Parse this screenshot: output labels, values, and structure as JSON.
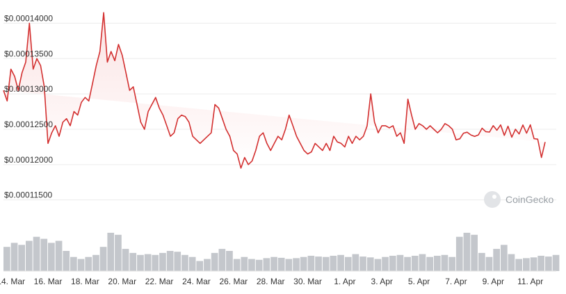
{
  "chart_data": {
    "type": "area",
    "title": "",
    "xlabel": "",
    "ylabel": "",
    "ylim": [
      0.000113,
      0.0001425
    ],
    "y_ticks": [
      0.000115,
      0.00012,
      0.000125,
      0.00013,
      0.000135,
      0.00014
    ],
    "y_tick_labels": [
      "$0.00011500",
      "$0.00012000",
      "$0.00012500",
      "$0.00013000",
      "$0.00013500",
      "$0.00014000"
    ],
    "x_tick_labels": [
      "14. Mar",
      "16. Mar",
      "18. Mar",
      "20. Mar",
      "22. Mar",
      "24. Mar",
      "26. Mar",
      "28. Mar",
      "30. Mar",
      "1. Apr",
      "3. Apr",
      "5. Apr",
      "7. Apr",
      "9. Apr",
      "11. Apr"
    ],
    "x_ticks_day": [
      1,
      3,
      5,
      7,
      9,
      11,
      13,
      15,
      17,
      19,
      21,
      23,
      25,
      27,
      29
    ],
    "x_range_day": [
      0.6,
      30.4
    ],
    "grid": true,
    "legend": "none",
    "series": [
      {
        "day": [
          0.6,
          0.8,
          1.0,
          1.2,
          1.4,
          1.6,
          1.8,
          2.0,
          2.2,
          2.4,
          2.6,
          2.8,
          3.0,
          3.2,
          3.4,
          3.6,
          3.8,
          4.0,
          4.2,
          4.4,
          4.6,
          4.8,
          5.0,
          5.2,
          5.4,
          5.6,
          5.8,
          6.0,
          6.2,
          6.4,
          6.6,
          6.8,
          7.0,
          7.2,
          7.4,
          7.6,
          7.8,
          8.0,
          8.2,
          8.4,
          8.6,
          8.8,
          9.0,
          9.2,
          9.4,
          9.6,
          9.8,
          10.0,
          10.2,
          10.4,
          10.6,
          10.8,
          11.0,
          11.2,
          11.4,
          11.6,
          11.8,
          12.0,
          12.2,
          12.4,
          12.6,
          12.8,
          13.0,
          13.2,
          13.4,
          13.6,
          13.8,
          14.0,
          14.2,
          14.4,
          14.6,
          14.8,
          15.0,
          15.2,
          15.4,
          15.6,
          15.8,
          16.0,
          16.2,
          16.4,
          16.6,
          16.8,
          17.0,
          17.2,
          17.4,
          17.6,
          17.8,
          18.0,
          18.2,
          18.4,
          18.6,
          18.8,
          19.0,
          19.2,
          19.4,
          19.6,
          19.8,
          20.0,
          20.2,
          20.4,
          20.6,
          20.8,
          21.0,
          21.2,
          21.4,
          21.6,
          21.8,
          22.0,
          22.2,
          22.4,
          22.6,
          22.8,
          23.0,
          23.2,
          23.4,
          23.6,
          23.8,
          24.0,
          24.2,
          24.4,
          24.6,
          24.8,
          25.0,
          25.2,
          25.4,
          25.6,
          25.8,
          26.0,
          26.2,
          26.4,
          26.6,
          26.8,
          27.0,
          27.2,
          27.4,
          27.6,
          27.8,
          28.0,
          28.2,
          28.4,
          28.6,
          28.8,
          29.0,
          29.2,
          29.4,
          29.6,
          29.8,
          30.0,
          30.2,
          30.4
        ],
        "price": [
          0.0001305,
          0.000129,
          0.0001335,
          0.0001325,
          0.0001305,
          0.000133,
          0.0001345,
          0.00014,
          0.0001335,
          0.000135,
          0.000134,
          0.000131,
          0.000123,
          0.0001245,
          0.0001255,
          0.000124,
          0.000126,
          0.0001265,
          0.0001255,
          0.0001275,
          0.000127,
          0.0001288,
          0.0001295,
          0.000129,
          0.0001315,
          0.000134,
          0.000136,
          0.0001415,
          0.0001345,
          0.000136,
          0.0001347,
          0.000137,
          0.0001355,
          0.000133,
          0.0001305,
          0.000131,
          0.0001285,
          0.000126,
          0.000125,
          0.0001275,
          0.0001285,
          0.0001295,
          0.000128,
          0.000127,
          0.0001255,
          0.000124,
          0.0001245,
          0.0001265,
          0.000127,
          0.0001268,
          0.000126,
          0.000124,
          0.0001235,
          0.000123,
          0.0001235,
          0.000124,
          0.0001245,
          0.0001285,
          0.000128,
          0.0001265,
          0.000125,
          0.000124,
          0.000122,
          0.0001215,
          0.0001195,
          0.000121,
          0.00012,
          0.0001205,
          0.000122,
          0.000124,
          0.0001245,
          0.000123,
          0.000122,
          0.000123,
          0.000124,
          0.0001235,
          0.000125,
          0.000127,
          0.0001255,
          0.000124,
          0.000123,
          0.000122,
          0.0001215,
          0.0001218,
          0.000123,
          0.0001225,
          0.000122,
          0.000123,
          0.000122,
          0.000124,
          0.0001232,
          0.000123,
          0.0001225,
          0.000124,
          0.000123,
          0.000124,
          0.0001235,
          0.000124,
          0.00012545,
          0.00013,
          0.000126,
          0.0001245,
          0.0001255,
          0.0001255,
          0.0001252,
          0.0001255,
          0.000124,
          0.0001245,
          0.000123,
          0.00012925,
          0.000127,
          0.000125,
          0.0001258,
          0.0001255,
          0.000125,
          0.0001255,
          0.000125,
          0.0001245,
          0.000125,
          0.0001258,
          0.0001255,
          0.000125,
          0.0001235,
          0.00012365,
          0.00012445,
          0.00012458,
          0.00012418,
          0.00012398,
          0.0001242,
          0.00012514,
          0.00012466,
          0.0001246,
          0.00012551,
          0.00012486,
          0.00012562,
          0.00012413,
          0.00012543,
          0.00012388,
          0.000125,
          0.00012434,
          0.00012561,
          0.00012445,
          0.00012563,
          0.00012367,
          0.0001236,
          0.000121,
          0.0001232
        ]
      }
    ],
    "volume": {
      "day": [
        0.6,
        1.0,
        1.4,
        1.8,
        2.2,
        2.6,
        3.0,
        3.4,
        3.8,
        4.2,
        4.6,
        5.0,
        5.4,
        5.8,
        6.2,
        6.6,
        7.0,
        7.4,
        7.8,
        8.2,
        8.6,
        9.0,
        9.4,
        9.8,
        10.2,
        10.6,
        11.0,
        11.4,
        11.8,
        12.2,
        12.6,
        13.0,
        13.4,
        13.8,
        14.2,
        14.6,
        15.0,
        15.4,
        15.8,
        16.2,
        16.6,
        17.0,
        17.4,
        17.8,
        18.2,
        18.6,
        19.0,
        19.4,
        19.8,
        20.2,
        20.6,
        21.0,
        21.4,
        21.8,
        22.2,
        22.6,
        23.0,
        23.4,
        23.8,
        24.2,
        24.6,
        25.0,
        25.4,
        25.8,
        26.2,
        26.6,
        27.0,
        27.4,
        27.8,
        28.2,
        28.6,
        29.0,
        29.4,
        29.8,
        30.2
      ],
      "level": [
        0.6,
        0.7,
        0.65,
        0.75,
        0.85,
        0.8,
        0.7,
        0.75,
        0.5,
        0.35,
        0.3,
        0.35,
        0.4,
        0.6,
        0.95,
        0.9,
        0.55,
        0.45,
        0.4,
        0.42,
        0.4,
        0.45,
        0.5,
        0.48,
        0.4,
        0.35,
        0.25,
        0.3,
        0.45,
        0.55,
        0.5,
        0.3,
        0.35,
        0.3,
        0.28,
        0.32,
        0.35,
        0.33,
        0.3,
        0.32,
        0.35,
        0.38,
        0.36,
        0.35,
        0.38,
        0.4,
        0.35,
        0.42,
        0.36,
        0.34,
        0.3,
        0.35,
        0.38,
        0.4,
        0.35,
        0.38,
        0.42,
        0.35,
        0.38,
        0.4,
        0.35,
        0.85,
        0.95,
        0.9,
        0.45,
        0.35,
        0.55,
        0.65,
        0.42,
        0.3,
        0.32,
        0.34,
        0.38,
        0.36,
        0.4
      ]
    },
    "colors": {
      "line": "#d32f2f",
      "fill_top": "#fbe3e3",
      "fill_bottom": "#ffffff",
      "grid": "#ececec",
      "volume": "#c4c7cc"
    }
  },
  "watermark": {
    "text": "CoinGecko",
    "icon": "gecko-icon"
  }
}
